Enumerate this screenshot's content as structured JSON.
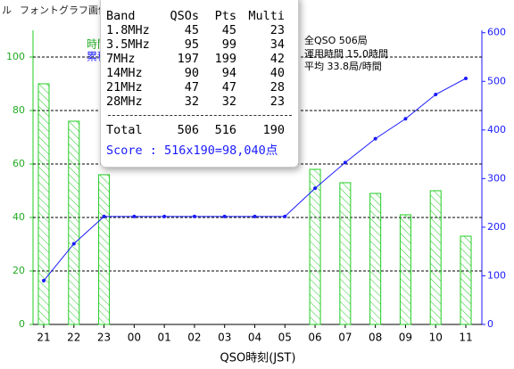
{
  "menu": [
    "ル",
    "フォント",
    "グラフ画像"
  ],
  "chart_data": {
    "type": "bar",
    "x_label": "QSO時刻(JST)",
    "categories": [
      "21",
      "22",
      "23",
      "00",
      "01",
      "02",
      "03",
      "04",
      "05",
      "06",
      "07",
      "08",
      "09",
      "10",
      "11"
    ],
    "series": [
      {
        "name": "時間",
        "type": "bar",
        "color": "#22cc22",
        "values": [
          90,
          76,
          56,
          0,
          0,
          0,
          0,
          0,
          0,
          58,
          53,
          49,
          41,
          50,
          33
        ]
      },
      {
        "name": "累積",
        "type": "line",
        "axis": "y2",
        "color": "#1a1aff",
        "values": [
          90,
          166,
          222,
          222,
          222,
          222,
          222,
          222,
          222,
          280,
          333,
          382,
          423,
          473,
          506
        ]
      }
    ],
    "ylim": [
      0,
      110
    ],
    "yticks": [
      0,
      20,
      40,
      60,
      80,
      100
    ],
    "y2lim": [
      0,
      605
    ],
    "y2ticks": [
      0,
      100,
      200,
      300,
      400,
      500,
      600
    ],
    "grid": true,
    "summary": [
      "全QSO 506局",
      "運用時間 15.0時間",
      "平均 33.8局/時間"
    ]
  },
  "popup": {
    "header": [
      "Band",
      "QSOs",
      "Pts",
      "Multi"
    ],
    "rows": [
      [
        "1.8MHz",
        "45",
        "45",
        "23"
      ],
      [
        "3.5MHz",
        "95",
        "99",
        "34"
      ],
      [
        "7MHz",
        "197",
        "199",
        "42"
      ],
      [
        "14MHz",
        "90",
        "94",
        "40"
      ],
      [
        "21MHz",
        "47",
        "47",
        "28"
      ],
      [
        "28MHz",
        "32",
        "32",
        "23"
      ]
    ],
    "total": [
      "Total",
      "506",
      "516",
      "190"
    ],
    "score": "Score : 516x190=98,040点"
  }
}
